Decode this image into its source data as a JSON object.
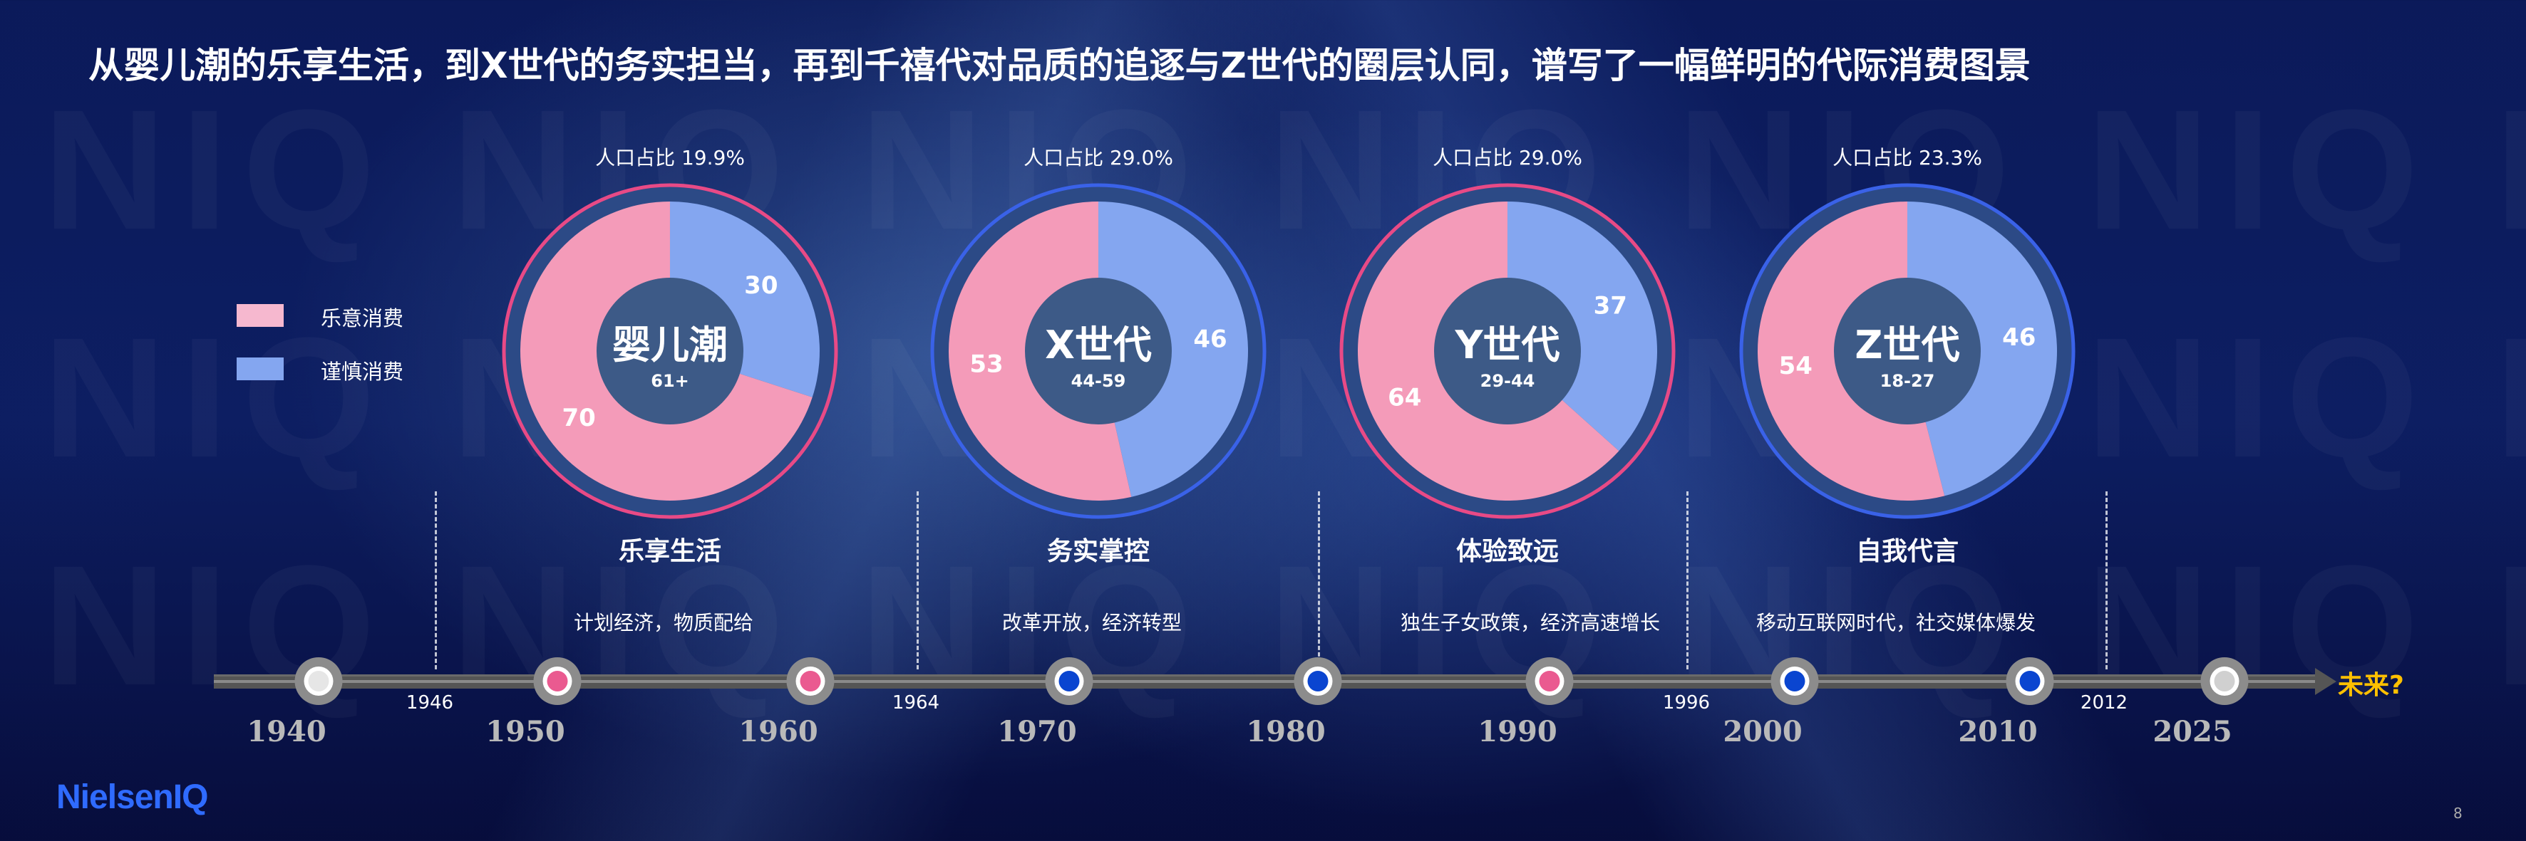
{
  "title": "从婴儿潮的乐享生活，到X世代的务实担当，再到千禧代对品质的追逐与Z世代的圈层认同，谱写了一幅鲜明的代际消费图景",
  "legend": [
    {
      "label": "乐意消费",
      "color": "#f49bb9"
    },
    {
      "label": "谨慎消费",
      "color": "#84a6f0"
    }
  ],
  "generations": [
    {
      "name": "婴儿潮",
      "age": "61+",
      "population": "人口占比 19.9%",
      "enjoy": 70,
      "cautious": 30,
      "ring_color": "#e84a86",
      "theme": "乐享生活",
      "context": "计划经济，物质配给"
    },
    {
      "name": "X世代",
      "age": "44-59",
      "population": "人口占比 29.0%",
      "enjoy": 53,
      "cautious": 46,
      "ring_color": "#3a62e8",
      "theme": "务实掌控",
      "context": "改革开放，经济转型"
    },
    {
      "name": "Y世代",
      "age": "29-44",
      "population": "人口占比 29.0%",
      "enjoy": 64,
      "cautious": 37,
      "ring_color": "#e84a86",
      "theme": "体验致远",
      "context": "独生子女政策，经济高速增长"
    },
    {
      "name": "Z世代",
      "age": "18-27",
      "population": "人口占比 23.3%",
      "enjoy": 54,
      "cautious": 46,
      "ring_color": "#3a62e8",
      "theme": "自我代言",
      "context": "移动互联网时代，社交媒体爆发"
    }
  ],
  "colors": {
    "hole": "#3d5a87",
    "enjoy": "#f49bb9",
    "cautious": "#84a6f0"
  },
  "timeline": {
    "years": [
      {
        "label": "1940",
        "dot": "#e6e6e6"
      },
      {
        "label": "1950",
        "dot": "#ea5a90"
      },
      {
        "label": "1960",
        "dot": "#ea5a90"
      },
      {
        "label": "1970",
        "dot": "#0a45d0"
      },
      {
        "label": "1980",
        "dot": "#0a45d0"
      },
      {
        "label": "1990",
        "dot": "#ea5a90"
      },
      {
        "label": "2000",
        "dot": "#0a45d0"
      },
      {
        "label": "2010",
        "dot": "#0a45d0"
      },
      {
        "label": "2025",
        "dot": "#d0d0d0"
      }
    ],
    "boundaries": [
      "1946",
      "1964",
      "1996",
      "2012"
    ],
    "future": "未来?"
  },
  "logo": "NielsenIQ",
  "page_number": "8"
}
